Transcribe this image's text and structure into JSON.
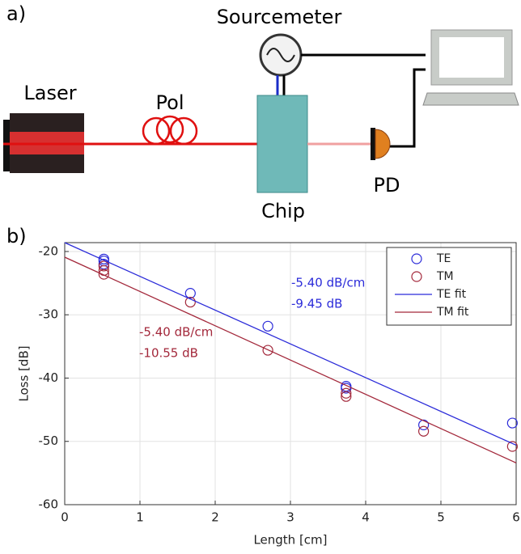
{
  "panel_a": {
    "label": "a)",
    "sourcemeter": "Sourcemeter",
    "laser": "Laser",
    "pol": "Pol",
    "chip": "Chip",
    "pd": "PD"
  },
  "panel_b": {
    "label": "b)"
  },
  "chart_data": {
    "type": "scatter",
    "xlabel": "Length [cm]",
    "ylabel": "Loss [dB]",
    "xlim": [
      0,
      6
    ],
    "ylim": [
      -60,
      -18.6
    ],
    "xticks": [
      0,
      1,
      2,
      3,
      4,
      5,
      6
    ],
    "yticks": [
      -60,
      -50,
      -40,
      -30,
      -20
    ],
    "grid": true,
    "legend": "top-right",
    "series": [
      {
        "name": "TE",
        "color": "#2b2bd9",
        "style": "marker",
        "x": [
          0.52,
          0.52,
          0.52,
          1.67,
          2.7,
          3.74,
          3.74,
          4.77,
          5.95
        ],
        "values": [
          -21.2,
          -21.5,
          -22,
          -26.6,
          -31.8,
          -41.3,
          -41.6,
          -47.4,
          -47.1
        ]
      },
      {
        "name": "TM",
        "color": "#a3283b",
        "style": "marker",
        "x": [
          0.52,
          0.52,
          0.52,
          1.67,
          2.7,
          3.74,
          3.74,
          4.77,
          5.95
        ],
        "values": [
          -22.3,
          -23,
          -23.6,
          -28,
          -35.6,
          -42.4,
          -42.9,
          -48.4,
          -50.8
        ]
      },
      {
        "name": "TE fit",
        "color": "#2b2bd9",
        "style": "line",
        "x": [
          0,
          6
        ],
        "values": [
          -18.6,
          -50.6
        ]
      },
      {
        "name": "TM fit",
        "color": "#a3283b",
        "style": "line",
        "x": [
          0,
          6
        ],
        "values": [
          -20.9,
          -53.4
        ]
      }
    ],
    "annotations": [
      {
        "text": "-5.40 dB/cm",
        "color": "#2b2bd9"
      },
      {
        "text": "-9.45 dB",
        "color": "#2b2bd9"
      },
      {
        "text": "-5.40 dB/cm",
        "color": "#a3283b"
      },
      {
        "text": "-10.55 dB",
        "color": "#a3283b"
      }
    ]
  }
}
